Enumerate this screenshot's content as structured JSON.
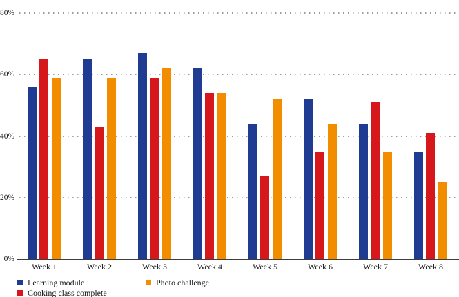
{
  "chart_data": {
    "type": "bar",
    "title": "",
    "xlabel": "",
    "ylabel": "",
    "categories": [
      "Week 1",
      "Week 2",
      "Week 3",
      "Week 4",
      "Week 5",
      "Week 6",
      "Week 7",
      "Week 8"
    ],
    "series": [
      {
        "name": "Learning module",
        "color": "#203c92",
        "values": [
          56,
          65,
          67,
          62,
          44,
          52,
          44,
          35
        ]
      },
      {
        "name": "Cooking class complete",
        "color": "#d6181c",
        "values": [
          65,
          43,
          59,
          54,
          27,
          35,
          51,
          41
        ]
      },
      {
        "name": "Photo challenge",
        "color": "#f28d00",
        "values": [
          59,
          59,
          62,
          54,
          52,
          44,
          35,
          25
        ]
      }
    ],
    "y_ticks": [
      {
        "label": "0%",
        "value": 0
      },
      {
        "label": "20%",
        "value": 20
      },
      {
        "label": "40%",
        "value": 40
      },
      {
        "label": "60%",
        "value": 60
      },
      {
        "label": "80%",
        "value": 80
      }
    ],
    "ylim": [
      0,
      80
    ],
    "grid": "horizontal-dotted",
    "legend_position": "bottom-left"
  },
  "colors": {
    "background": "#ffffff",
    "axis": "#3d3d3d",
    "gridline": "#9c9c9c",
    "text": "#1a1a1a"
  }
}
